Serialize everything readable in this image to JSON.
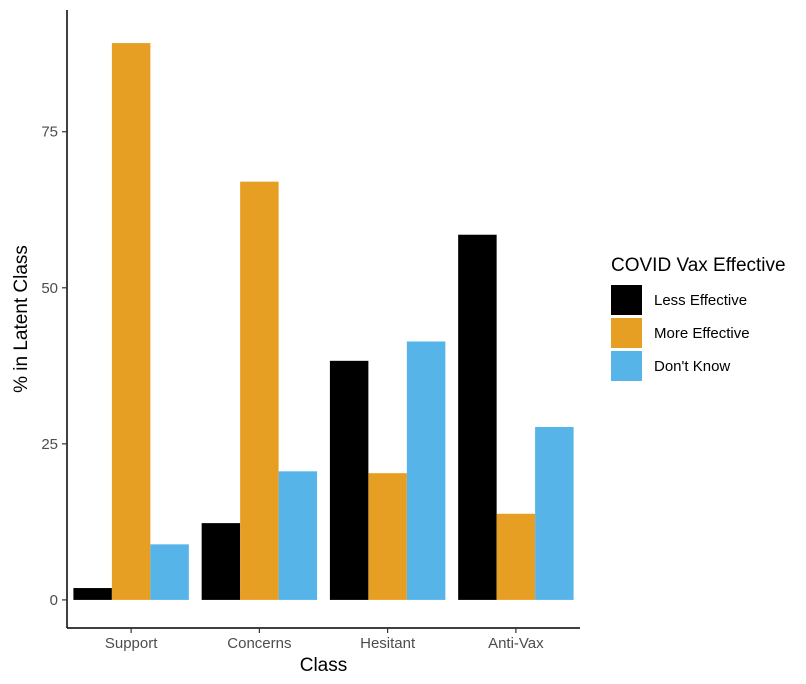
{
  "chart_data": {
    "type": "bar",
    "categories": [
      "Support",
      "Concerns",
      "Hesitant",
      "Anti-Vax"
    ],
    "series": [
      {
        "name": "Less Effective",
        "values": [
          1.9,
          12.3,
          38.3,
          58.5
        ],
        "color": "#000000"
      },
      {
        "name": "More Effective",
        "values": [
          89.2,
          67.0,
          20.3,
          13.8
        ],
        "color": "#E69F22"
      },
      {
        "name": "Don't Know",
        "values": [
          8.9,
          20.6,
          41.4,
          27.7
        ],
        "color": "#56B4E9"
      }
    ],
    "xlabel": "Class",
    "ylabel": "% in Latent Class",
    "ylim": [
      -4.5,
      94.5
    ],
    "yticks": [
      0,
      25,
      50,
      75
    ],
    "legend": {
      "title": "COVID Vax Effective",
      "position": "right"
    },
    "grid": false
  }
}
